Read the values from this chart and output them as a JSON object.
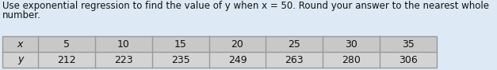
{
  "title_line1": "Use exponential regression to find the value of y when x = 50. Round your answer to the nearest whole",
  "title_line2": "number.",
  "x_label": "x",
  "y_label": "y",
  "x_values": [
    "5",
    "10",
    "15",
    "20",
    "25",
    "30",
    "35"
  ],
  "y_values": [
    "212",
    "223",
    "235",
    "249",
    "263",
    "280",
    "306"
  ],
  "bg_color": "#ddeaf5",
  "header_bg": "#c8c8c8",
  "row_bg": "#d4d4d4",
  "table_border": "#999999",
  "text_color": "#111111",
  "title_fontsize": 8.5,
  "cell_fontsize": 9.0,
  "fig_width": 6.27,
  "fig_height": 0.89,
  "dpi": 100
}
